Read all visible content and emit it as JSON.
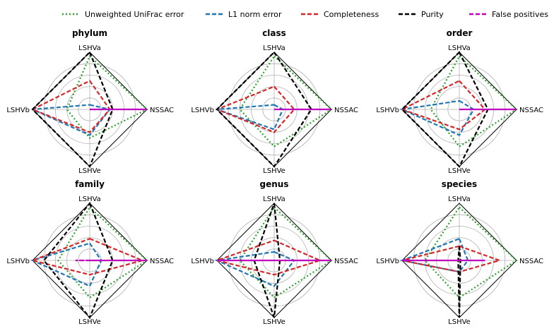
{
  "chart_data": {
    "type": "radar",
    "axes": [
      "LSHVa",
      "NSSAC",
      "LSHVe",
      "LSHVb"
    ],
    "rlim": [
      0,
      1
    ],
    "grid": true,
    "legend": {
      "placement": "top",
      "entries": [
        {
          "name": "Unweighted UniFrac error",
          "color": "#2ca02c",
          "style": "dotted"
        },
        {
          "name": "L1 norm error",
          "color": "#1f77b4",
          "style": "dashed"
        },
        {
          "name": "Completeness",
          "color": "#d62728",
          "style": "dashed"
        },
        {
          "name": "Purity",
          "color": "#000000",
          "style": "dashed"
        },
        {
          "name": "False positives",
          "color": "#bf00bf",
          "style": "dashed"
        }
      ]
    },
    "panels": [
      {
        "title": "phylum",
        "series": [
          {
            "name": "Unweighted UniFrac error",
            "values": [
              0.93,
              1.0,
              0.5,
              0.4
            ]
          },
          {
            "name": "L1 norm error",
            "values": [
              0.08,
              0.35,
              0.45,
              1.0
            ]
          },
          {
            "name": "Completeness",
            "values": [
              0.5,
              0.35,
              0.4,
              1.0
            ]
          },
          {
            "name": "Purity",
            "values": [
              1.0,
              0.4,
              1.0,
              1.0
            ]
          },
          {
            "name": "False positives",
            "values": [
              0.0,
              1.0,
              0.0,
              0.0
            ]
          }
        ]
      },
      {
        "title": "class",
        "series": [
          {
            "name": "Unweighted UniFrac error",
            "values": [
              0.93,
              1.0,
              0.65,
              0.6
            ]
          },
          {
            "name": "L1 norm error",
            "values": [
              0.08,
              0.15,
              0.35,
              1.0
            ]
          },
          {
            "name": "Completeness",
            "values": [
              0.4,
              0.35,
              0.4,
              1.0
            ]
          },
          {
            "name": "Purity",
            "values": [
              1.0,
              0.65,
              1.0,
              1.0
            ]
          },
          {
            "name": "False positives",
            "values": [
              0.0,
              1.0,
              0.0,
              0.0
            ]
          }
        ]
      },
      {
        "title": "order",
        "series": [
          {
            "name": "Unweighted UniFrac error",
            "values": [
              0.93,
              1.0,
              0.65,
              0.5
            ]
          },
          {
            "name": "L1 norm error",
            "values": [
              0.15,
              0.25,
              0.45,
              1.0
            ]
          },
          {
            "name": "Completeness",
            "values": [
              0.5,
              0.45,
              0.35,
              1.0
            ]
          },
          {
            "name": "Purity",
            "values": [
              1.0,
              0.5,
              1.0,
              1.0
            ]
          },
          {
            "name": "False positives",
            "values": [
              0.0,
              1.0,
              0.0,
              0.0
            ]
          }
        ]
      },
      {
        "title": "family",
        "series": [
          {
            "name": "Unweighted UniFrac error",
            "values": [
              0.93,
              1.0,
              0.65,
              0.55
            ]
          },
          {
            "name": "L1 norm error",
            "values": [
              0.3,
              0.2,
              0.45,
              1.0
            ]
          },
          {
            "name": "Completeness",
            "values": [
              0.38,
              0.92,
              0.25,
              1.0
            ]
          },
          {
            "name": "Purity",
            "values": [
              1.0,
              0.4,
              1.0,
              0.8
            ]
          },
          {
            "name": "False positives",
            "values": [
              0.0,
              1.0,
              0.0,
              0.25
            ]
          }
        ]
      },
      {
        "title": "genus",
        "series": [
          {
            "name": "Unweighted UniFrac error",
            "values": [
              0.93,
              1.0,
              0.65,
              0.6
            ]
          },
          {
            "name": "L1 norm error",
            "values": [
              0.15,
              0.35,
              0.45,
              1.0
            ]
          },
          {
            "name": "Completeness",
            "values": [
              0.35,
              0.8,
              0.25,
              1.0
            ]
          },
          {
            "name": "Purity",
            "values": [
              1.0,
              0.1,
              1.0,
              0.35
            ]
          },
          {
            "name": "False positives",
            "values": [
              0.0,
              1.0,
              0.0,
              1.0
            ]
          }
        ]
      },
      {
        "title": "species",
        "series": [
          {
            "name": "Unweighted UniFrac error",
            "values": [
              0.93,
              1.0,
              0.65,
              0.6
            ]
          },
          {
            "name": "L1 norm error",
            "values": [
              0.38,
              0.15,
              0.2,
              1.0
            ]
          },
          {
            "name": "Completeness",
            "values": [
              0.25,
              0.7,
              0.2,
              1.0
            ]
          },
          {
            "name": "Purity",
            "values": [
              0.25,
              0.02,
              1.0,
              0.02
            ]
          },
          {
            "name": "False positives",
            "values": [
              0.0,
              0.45,
              0.0,
              1.0
            ]
          }
        ]
      }
    ]
  }
}
